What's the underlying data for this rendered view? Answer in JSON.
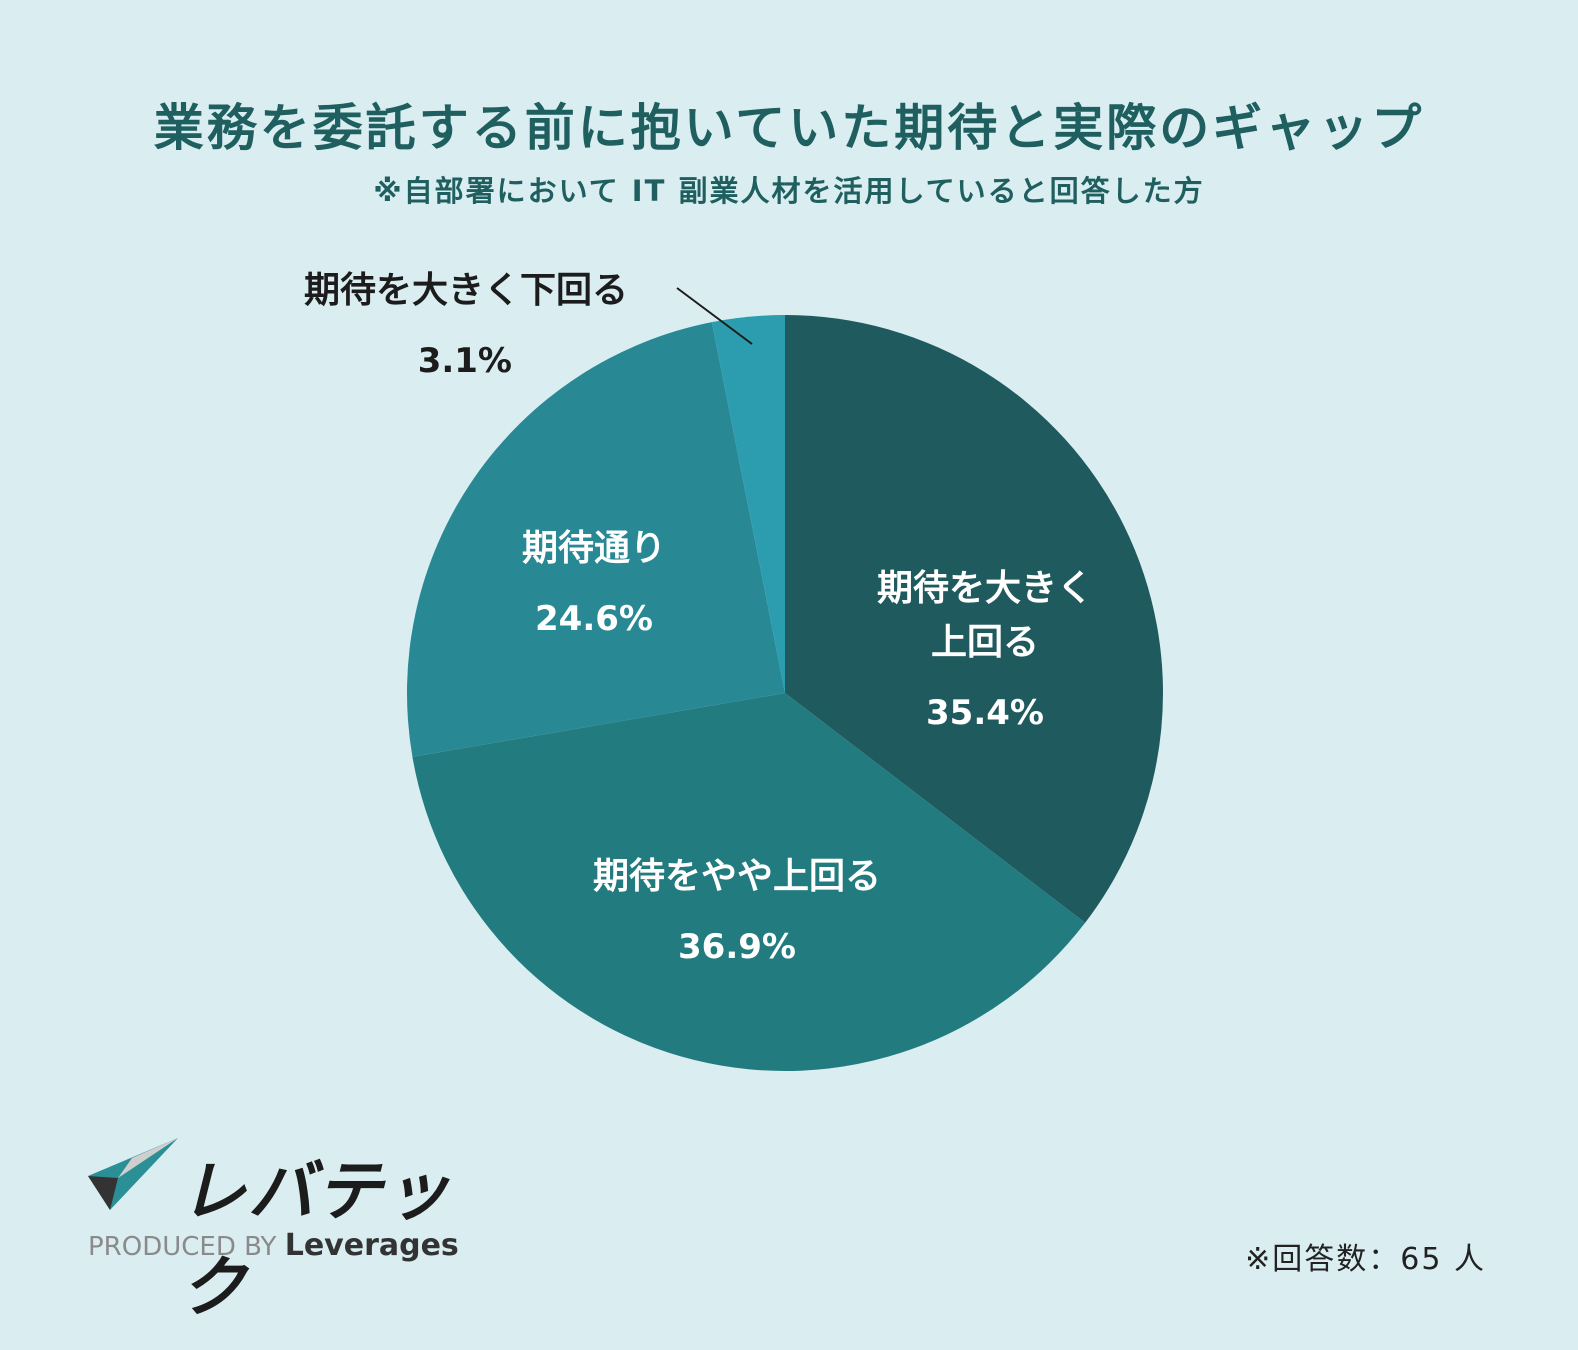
{
  "chart_data": {
    "type": "pie",
    "title": "業務を委託する前に抱いていた期待と実際のギャップ",
    "subtitle": "※自部署において IT 副業人材を活用していると回答した方",
    "slices": [
      {
        "label_lines": [
          "期待を大きく",
          "上回る"
        ],
        "value": 35.4,
        "pct_text": "35.4%",
        "color": "#1f5a5e",
        "text_color": "#ffffff"
      },
      {
        "label_lines": [
          "期待をやや上回る"
        ],
        "value": 36.9,
        "pct_text": "36.9%",
        "color": "#227b7e",
        "text_color": "#ffffff"
      },
      {
        "label_lines": [
          "期待通り"
        ],
        "value": 24.6,
        "pct_text": "24.6%",
        "color": "#288894",
        "text_color": "#ffffff"
      },
      {
        "label_lines": [
          "期待を大きく下回る"
        ],
        "value": 3.1,
        "pct_text": "3.1%",
        "color": "#2c9daf",
        "text_color": "#1c1c1c",
        "outside": true
      }
    ]
  },
  "logo": {
    "name": "レバテック",
    "produced_by": "PRODUCED BY",
    "company": "Leverages"
  },
  "footnote": "※回答数：65 人"
}
